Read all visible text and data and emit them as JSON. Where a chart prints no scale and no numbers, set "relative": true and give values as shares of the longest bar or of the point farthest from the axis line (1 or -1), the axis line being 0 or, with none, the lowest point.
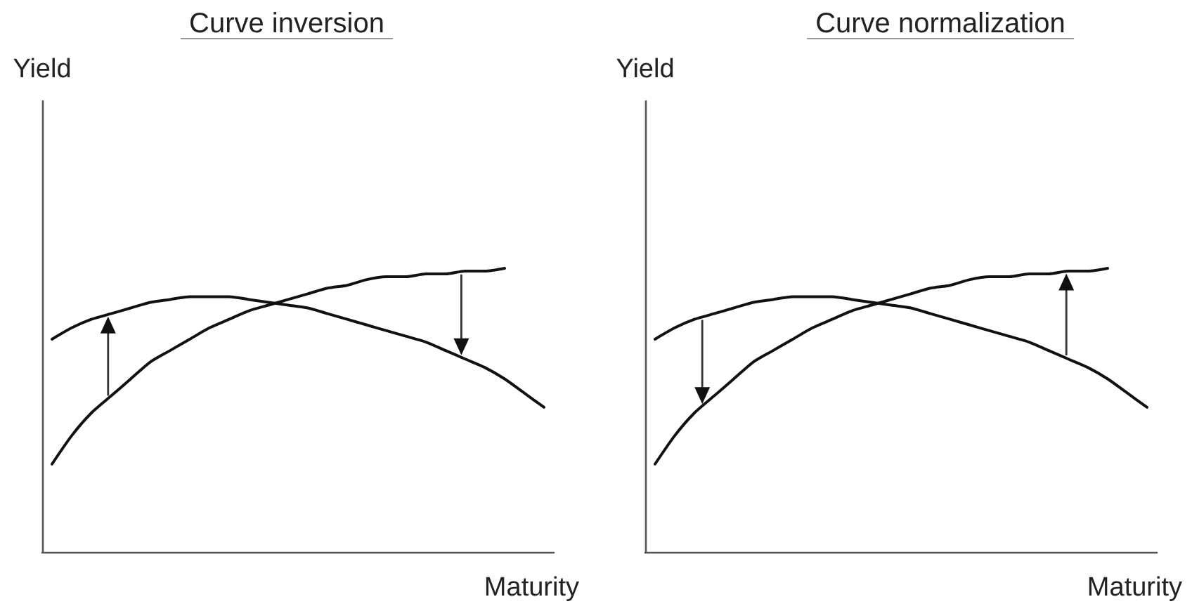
{
  "chart_data": [
    {
      "type": "line",
      "title": "Curve inversion",
      "xlabel": "Maturity",
      "ylabel": "Yield",
      "relative": true,
      "grid": false,
      "marker": "none",
      "line_style": "solid",
      "categories": [
        null,
        null,
        null,
        null,
        null,
        null,
        null,
        null,
        null,
        null,
        null,
        null,
        null,
        null,
        null,
        null,
        null,
        null,
        null,
        null,
        null,
        null,
        null,
        null,
        null,
        null
      ],
      "series": [
        {
          "color": "#111111",
          "values": [
            0.75,
            0.79,
            0.82,
            0.84,
            0.86,
            0.88,
            0.89,
            0.9,
            0.9,
            0.9,
            0.89,
            0.88,
            0.87,
            0.86,
            0.84,
            0.82,
            0.8,
            0.78,
            0.76,
            0.74,
            0.71,
            0.68,
            0.65,
            0.61,
            0.56,
            0.51
          ]
        },
        {
          "color": "#111111",
          "values": [
            0.31,
            0.41,
            0.49,
            0.55,
            0.61,
            0.67,
            0.71,
            0.75,
            0.79,
            0.82,
            0.85,
            0.87,
            0.89,
            0.91,
            0.93,
            0.94,
            0.96,
            0.97,
            0.97,
            0.98,
            0.98,
            0.99,
            0.99,
            1,
            null,
            null
          ]
        }
      ]
    },
    {
      "type": "line",
      "title": "Curve normalization",
      "xlabel": "Maturity",
      "ylabel": "Yield",
      "relative": true,
      "grid": false,
      "marker": "none",
      "line_style": "solid",
      "categories": [
        null,
        null,
        null,
        null,
        null,
        null,
        null,
        null,
        null,
        null,
        null,
        null,
        null,
        null,
        null,
        null,
        null,
        null,
        null,
        null,
        null,
        null,
        null,
        null,
        null,
        null
      ],
      "series": [
        {
          "color": "#111111",
          "values": [
            0.75,
            0.79,
            0.82,
            0.84,
            0.86,
            0.88,
            0.89,
            0.9,
            0.9,
            0.9,
            0.89,
            0.88,
            0.87,
            0.86,
            0.84,
            0.82,
            0.8,
            0.78,
            0.76,
            0.74,
            0.71,
            0.68,
            0.65,
            0.61,
            0.56,
            0.51
          ]
        },
        {
          "color": "#111111",
          "values": [
            0.31,
            0.41,
            0.49,
            0.55,
            0.61,
            0.67,
            0.71,
            0.75,
            0.79,
            0.82,
            0.85,
            0.87,
            0.89,
            0.91,
            0.93,
            0.94,
            0.96,
            0.97,
            0.97,
            0.98,
            0.98,
            0.99,
            0.99,
            1,
            null,
            null
          ]
        }
      ]
    }
  ]
}
